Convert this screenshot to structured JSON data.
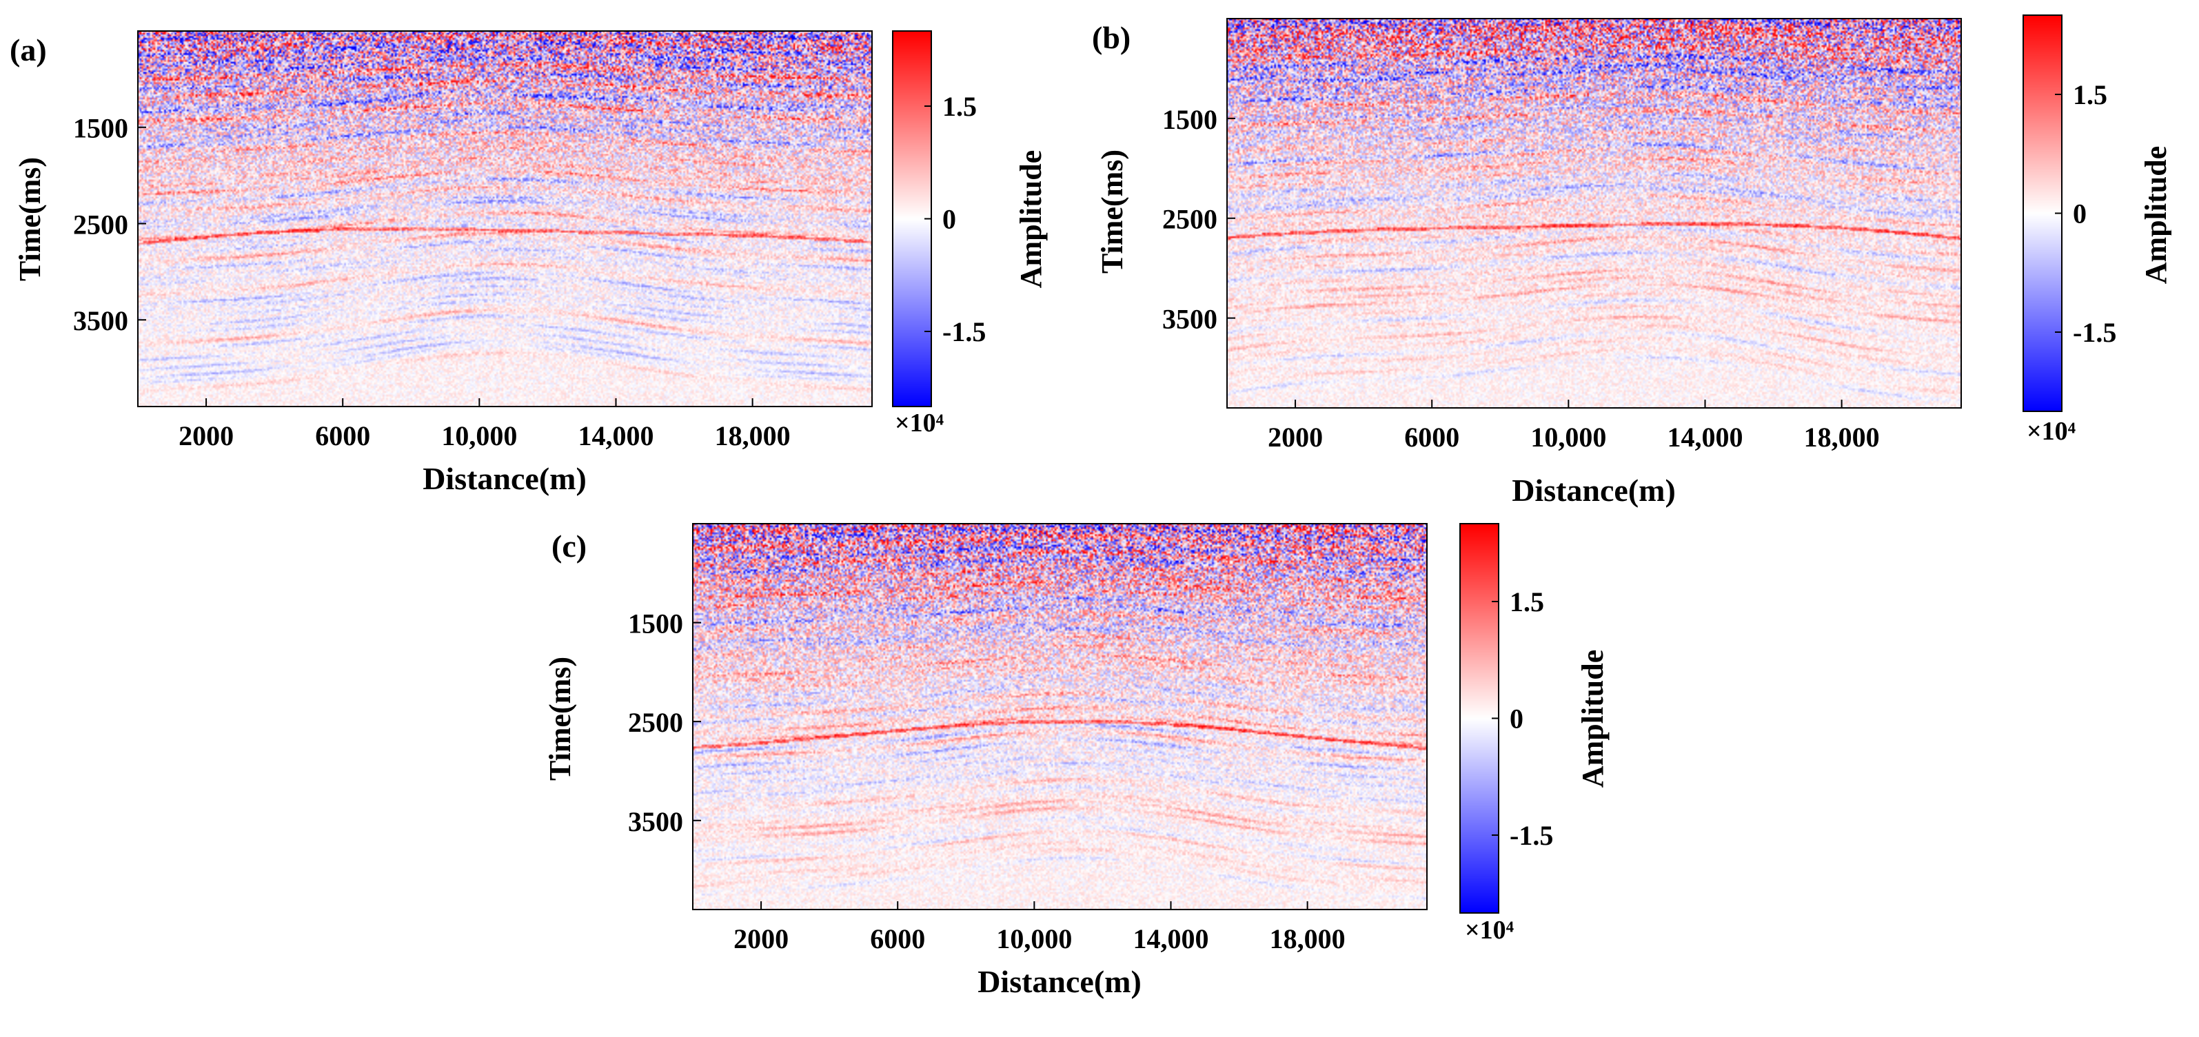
{
  "figure": {
    "colormap": {
      "low": "#0000ff",
      "mid": "#ffffff",
      "high": "#ff0000"
    }
  },
  "chart_data": [
    {
      "type": "heatmap",
      "panel_label": "(a)",
      "xlabel": "Distance(m)",
      "ylabel": "Time(ms)",
      "x_ticks": [
        2000,
        6000,
        10000,
        14000,
        18000
      ],
      "x_tick_labels": [
        "2000",
        "6000",
        "10,000",
        "14,000",
        "18,000"
      ],
      "y_ticks": [
        1500,
        2500,
        3500
      ],
      "y_tick_labels": [
        "1500",
        "2500",
        "3500"
      ],
      "xlim": [
        0,
        21500
      ],
      "ylim": [
        500,
        4400
      ],
      "colorbar": {
        "label": "Amplitude",
        "ticks": [
          1.5,
          0,
          -1.5
        ],
        "tick_labels": [
          "1.5",
          "0",
          "-1.5"
        ],
        "range": [
          -2.5,
          2.5
        ],
        "exponent_label": "×10⁴"
      },
      "seed": 11
    },
    {
      "type": "heatmap",
      "panel_label": "(b)",
      "xlabel": "Distance(m)",
      "ylabel": "Time(ms)",
      "x_ticks": [
        2000,
        6000,
        10000,
        14000,
        18000
      ],
      "x_tick_labels": [
        "2000",
        "6000",
        "10,000",
        "14,000",
        "18,000"
      ],
      "y_ticks": [
        1500,
        2500,
        3500
      ],
      "y_tick_labels": [
        "1500",
        "2500",
        "3500"
      ],
      "xlim": [
        0,
        21500
      ],
      "ylim": [
        500,
        4400
      ],
      "colorbar": {
        "label": "Amplitude",
        "ticks": [
          1.5,
          0,
          -1.5
        ],
        "tick_labels": [
          "1.5",
          "0",
          "-1.5"
        ],
        "range": [
          -2.5,
          2.5
        ],
        "exponent_label": "×10⁴"
      },
      "seed": 23
    },
    {
      "type": "heatmap",
      "panel_label": "(c)",
      "xlabel": "Distance(m)",
      "ylabel": "Time(ms)",
      "x_ticks": [
        2000,
        6000,
        10000,
        14000,
        18000
      ],
      "x_tick_labels": [
        "2000",
        "6000",
        "10,000",
        "14,000",
        "18,000"
      ],
      "y_ticks": [
        1500,
        2500,
        3500
      ],
      "y_tick_labels": [
        "1500",
        "2500",
        "3500"
      ],
      "xlim": [
        0,
        21500
      ],
      "ylim": [
        500,
        4400
      ],
      "colorbar": {
        "label": "Amplitude",
        "ticks": [
          1.5,
          0,
          -1.5
        ],
        "tick_labels": [
          "1.5",
          "0",
          "-1.5"
        ],
        "range": [
          -2.5,
          2.5
        ],
        "exponent_label": "×10⁴"
      },
      "seed": 37
    }
  ]
}
